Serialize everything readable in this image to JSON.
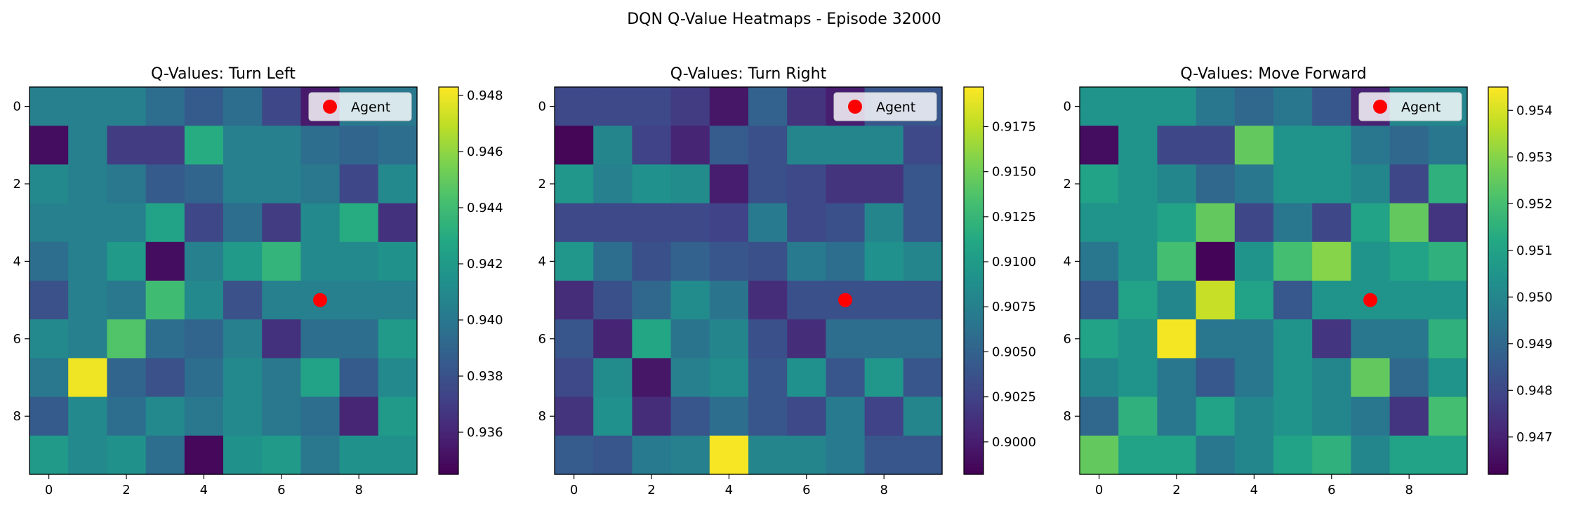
{
  "suptitle": "DQN Q-Value Heatmaps - Episode 32000",
  "colormap": "viridis",
  "chart_data": [
    {
      "type": "heatmap",
      "title": "Q-Values: Turn Left",
      "xticks": [
        "0",
        "2",
        "4",
        "6",
        "8"
      ],
      "yticks": [
        "0",
        "2",
        "4",
        "6",
        "8"
      ],
      "grid_size": [
        10,
        10
      ],
      "vmin": 0.9345,
      "vmax": 0.9483,
      "colorbar_ticks": [
        0.936,
        0.938,
        0.94,
        0.942,
        0.944,
        0.946,
        0.948
      ],
      "colorbar_labels": [
        "0.936",
        "0.938",
        "0.940",
        "0.942",
        "0.944",
        "0.946",
        "0.948"
      ],
      "legend": {
        "label": "Agent",
        "position": "upper-right"
      },
      "agent": {
        "x": 7,
        "y": 5
      },
      "values": [
        [
          0.9405,
          0.9405,
          0.9405,
          0.9395,
          0.9385,
          0.9395,
          0.9375,
          0.9355,
          0.94,
          0.94
        ],
        [
          0.935,
          0.9405,
          0.937,
          0.937,
          0.943,
          0.9405,
          0.9405,
          0.9395,
          0.939,
          0.9395
        ],
        [
          0.941,
          0.9405,
          0.94,
          0.9385,
          0.939,
          0.9405,
          0.9405,
          0.94,
          0.9375,
          0.941
        ],
        [
          0.9405,
          0.9405,
          0.9405,
          0.9425,
          0.9375,
          0.9395,
          0.937,
          0.941,
          0.943,
          0.9365
        ],
        [
          0.9395,
          0.9405,
          0.942,
          0.935,
          0.9405,
          0.942,
          0.9435,
          0.941,
          0.941,
          0.9415
        ],
        [
          0.938,
          0.9405,
          0.94,
          0.944,
          0.941,
          0.938,
          0.9405,
          0.9405,
          0.9405,
          0.9405
        ],
        [
          0.941,
          0.9405,
          0.9445,
          0.9395,
          0.939,
          0.9405,
          0.9365,
          0.9395,
          0.9395,
          0.942
        ],
        [
          0.94,
          0.948,
          0.939,
          0.938,
          0.9395,
          0.941,
          0.94,
          0.9425,
          0.9385,
          0.941
        ],
        [
          0.9385,
          0.941,
          0.9395,
          0.941,
          0.94,
          0.941,
          0.94,
          0.9395,
          0.936,
          0.942
        ],
        [
          0.942,
          0.941,
          0.9415,
          0.9395,
          0.9348,
          0.9415,
          0.942,
          0.94,
          0.9415,
          0.9415
        ]
      ]
    },
    {
      "type": "heatmap",
      "title": "Q-Values: Turn Right",
      "xticks": [
        "0",
        "2",
        "4",
        "6",
        "8"
      ],
      "yticks": [
        "0",
        "2",
        "4",
        "6",
        "8"
      ],
      "grid_size": [
        10,
        10
      ],
      "vmin": 0.8982,
      "vmax": 0.9197,
      "colorbar_ticks": [
        0.9,
        0.9025,
        0.905,
        0.9075,
        0.91,
        0.9125,
        0.915,
        0.9175
      ],
      "colorbar_labels": [
        "0.9000",
        "0.9025",
        "0.9050",
        "0.9075",
        "0.9100",
        "0.9125",
        "0.9150",
        "0.9175"
      ],
      "legend": {
        "label": "Agent",
        "position": "upper-right"
      },
      "agent": {
        "x": 7,
        "y": 5
      },
      "values": [
        [
          0.903,
          0.903,
          0.903,
          0.902,
          0.8995,
          0.905,
          0.9015,
          0.9,
          0.904,
          0.904
        ],
        [
          0.8985,
          0.908,
          0.9025,
          0.9005,
          0.9045,
          0.9035,
          0.908,
          0.908,
          0.908,
          0.903
        ],
        [
          0.9095,
          0.9075,
          0.909,
          0.9085,
          0.9,
          0.9035,
          0.903,
          0.9015,
          0.9015,
          0.904
        ],
        [
          0.903,
          0.903,
          0.903,
          0.903,
          0.9025,
          0.907,
          0.903,
          0.9035,
          0.908,
          0.904
        ],
        [
          0.9095,
          0.906,
          0.9035,
          0.905,
          0.904,
          0.9035,
          0.907,
          0.906,
          0.909,
          0.908
        ],
        [
          0.901,
          0.9035,
          0.9055,
          0.9085,
          0.9065,
          0.901,
          0.9035,
          0.9035,
          0.9035,
          0.9035
        ],
        [
          0.904,
          0.9005,
          0.911,
          0.9065,
          0.908,
          0.9035,
          0.901,
          0.906,
          0.906,
          0.906
        ],
        [
          0.903,
          0.9085,
          0.8995,
          0.9075,
          0.9085,
          0.904,
          0.909,
          0.904,
          0.9095,
          0.904
        ],
        [
          0.9015,
          0.909,
          0.901,
          0.904,
          0.906,
          0.904,
          0.903,
          0.907,
          0.9025,
          0.908
        ],
        [
          0.9045,
          0.904,
          0.907,
          0.9075,
          0.9195,
          0.908,
          0.908,
          0.907,
          0.904,
          0.904
        ]
      ]
    },
    {
      "type": "heatmap",
      "title": "Q-Values: Move Forward",
      "xticks": [
        "0",
        "2",
        "4",
        "6",
        "8"
      ],
      "yticks": [
        "0",
        "2",
        "4",
        "6",
        "8"
      ],
      "grid_size": [
        10,
        10
      ],
      "vmin": 0.9462,
      "vmax": 0.9545,
      "colorbar_ticks": [
        0.947,
        0.948,
        0.949,
        0.95,
        0.951,
        0.952,
        0.953,
        0.954
      ],
      "colorbar_labels": [
        "0.947",
        "0.948",
        "0.949",
        "0.950",
        "0.951",
        "0.952",
        "0.953",
        "0.954"
      ],
      "legend": {
        "label": "Agent",
        "position": "upper-right"
      },
      "agent": {
        "x": 7,
        "y": 5
      },
      "values": [
        [
          0.9505,
          0.9505,
          0.9505,
          0.9495,
          0.949,
          0.9495,
          0.9485,
          0.947,
          0.95,
          0.95
        ],
        [
          0.9465,
          0.9505,
          0.948,
          0.948,
          0.9525,
          0.9505,
          0.9505,
          0.9495,
          0.949,
          0.9495
        ],
        [
          0.951,
          0.9505,
          0.95,
          0.949,
          0.9495,
          0.9505,
          0.9505,
          0.95,
          0.948,
          0.9515
        ],
        [
          0.9505,
          0.9505,
          0.951,
          0.9525,
          0.948,
          0.9495,
          0.948,
          0.951,
          0.9525,
          0.9475
        ],
        [
          0.9495,
          0.9505,
          0.952,
          0.9463,
          0.9505,
          0.952,
          0.953,
          0.9505,
          0.951,
          0.9515
        ],
        [
          0.9485,
          0.951,
          0.95,
          0.9538,
          0.951,
          0.9485,
          0.9505,
          0.9505,
          0.9505,
          0.9505
        ],
        [
          0.951,
          0.9505,
          0.9544,
          0.9495,
          0.9495,
          0.9505,
          0.9475,
          0.9495,
          0.9495,
          0.9515
        ],
        [
          0.95,
          0.9505,
          0.9495,
          0.9485,
          0.9495,
          0.9505,
          0.95,
          0.9525,
          0.949,
          0.9505
        ],
        [
          0.949,
          0.9515,
          0.9495,
          0.951,
          0.95,
          0.9505,
          0.95,
          0.9495,
          0.9475,
          0.952
        ],
        [
          0.9525,
          0.951,
          0.951,
          0.9495,
          0.95,
          0.951,
          0.9515,
          0.95,
          0.951,
          0.951
        ]
      ]
    }
  ]
}
